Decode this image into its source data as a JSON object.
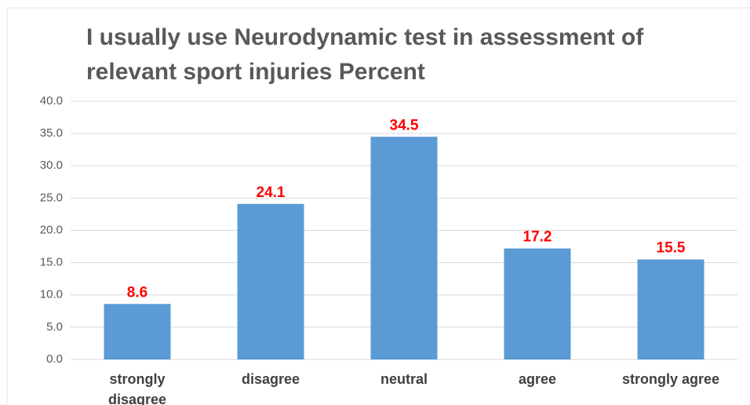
{
  "chart_data": {
    "type": "bar",
    "title": "I usually use Neurodynamic test in assessment of relevant sport injuries Percent",
    "categories": [
      "strongly disagree",
      "disagree",
      "neutral",
      "agree",
      "strongly agree"
    ],
    "values": [
      8.6,
      24.1,
      34.5,
      17.2,
      15.5
    ],
    "color": "#5b9bd5",
    "ylim": [
      0,
      40
    ],
    "yticks": [
      {
        "value": 0,
        "label": "0.0"
      },
      {
        "value": 5,
        "label": "5.0"
      },
      {
        "value": 10,
        "label": "10.0"
      },
      {
        "value": 15,
        "label": "15.0"
      },
      {
        "value": 20,
        "label": "20.0"
      },
      {
        "value": 25,
        "label": "25.0"
      },
      {
        "value": 30,
        "label": "30.0"
      },
      {
        "value": 35,
        "label": "35.0"
      },
      {
        "value": 40,
        "label": "40.0"
      }
    ],
    "grid": true
  }
}
